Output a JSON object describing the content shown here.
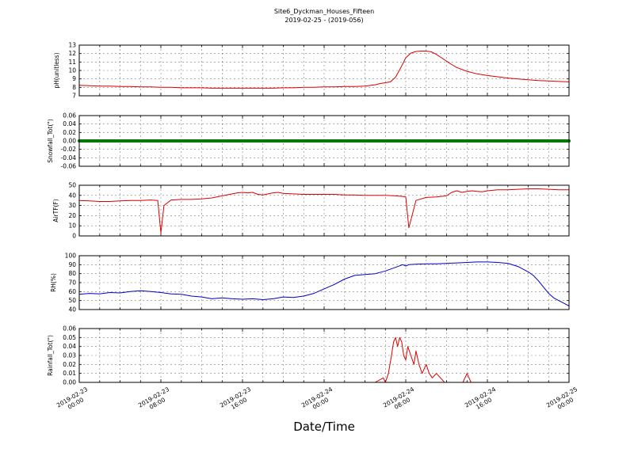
{
  "title": {
    "line1": "Site6_Dyckman_Houses_Fifteen",
    "line2": "2019-02-25 - (2019-056)"
  },
  "x_axis": {
    "label": "Date/Time",
    "unit": "hours since 2019-02-23 00:00",
    "range_hours": [
      0,
      48
    ],
    "grid_step_hours": 2,
    "tick_hours": [
      0,
      8,
      16,
      24,
      32,
      40,
      48
    ],
    "tick_labels": [
      [
        "2019-02-23",
        "00:00"
      ],
      [
        "2019-02-23",
        "08:00"
      ],
      [
        "2019-02-23",
        "16:00"
      ],
      [
        "2019-02-24",
        "00:00"
      ],
      [
        "2019-02-24",
        "08:00"
      ],
      [
        "2019-02-24",
        "16:00"
      ],
      [
        "2019-02-25",
        "00:00"
      ]
    ]
  },
  "chart_data": [
    {
      "id": "ph",
      "type": "line",
      "ylabel": "pH(unitless)",
      "color": "#dd0000",
      "line_width": 1,
      "ylim": [
        7,
        13
      ],
      "yticks": [
        7,
        8,
        9,
        10,
        11,
        12,
        13
      ],
      "ytick_labels": [
        "7",
        "8",
        "9",
        "10",
        "11",
        "12",
        "13"
      ],
      "x": [
        0,
        1,
        2,
        3,
        4,
        5,
        6,
        7,
        8,
        9,
        10,
        11,
        12,
        13,
        14,
        15,
        16,
        17,
        18,
        19,
        20,
        21,
        22,
        23,
        24,
        25,
        26,
        27,
        28,
        29,
        29.5,
        30,
        30.5,
        31,
        31.5,
        32,
        32.5,
        33,
        33.5,
        34,
        34.5,
        35,
        35.5,
        36,
        36.5,
        37,
        38,
        39,
        40,
        41,
        42,
        43,
        44,
        45,
        46,
        47,
        48
      ],
      "y": [
        8.25,
        8.2,
        8.15,
        8.15,
        8.1,
        8.1,
        8.05,
        8.05,
        8.0,
        8.0,
        7.95,
        7.95,
        7.95,
        7.9,
        7.9,
        7.9,
        7.9,
        7.9,
        7.9,
        7.9,
        7.95,
        7.95,
        8.0,
        8.0,
        8.05,
        8.05,
        8.1,
        8.1,
        8.15,
        8.3,
        8.45,
        8.55,
        8.65,
        9.2,
        10.3,
        11.5,
        12.05,
        12.25,
        12.3,
        12.3,
        12.2,
        11.9,
        11.5,
        11.1,
        10.7,
        10.35,
        9.9,
        9.6,
        9.4,
        9.25,
        9.1,
        9.0,
        8.9,
        8.8,
        8.75,
        8.7,
        8.65
      ]
    },
    {
      "id": "snowfall",
      "type": "line",
      "ylabel": "Snowfall_Tot(\")",
      "color": "#007700",
      "line_width": 4,
      "ylim": [
        -0.06,
        0.06
      ],
      "yticks": [
        -0.06,
        -0.04,
        -0.02,
        0,
        0.02,
        0.04,
        0.06
      ],
      "ytick_labels": [
        "-0.06",
        "-0.04",
        "-0.02",
        "0.00",
        "0.02",
        "0.04",
        "0.06"
      ],
      "x": [
        0,
        48
      ],
      "y": [
        0,
        0
      ]
    },
    {
      "id": "airtf",
      "type": "line",
      "ylabel": "AirTF(F)",
      "color": "#dd0000",
      "line_width": 1,
      "ylim": [
        0,
        50
      ],
      "yticks": [
        0,
        10,
        20,
        30,
        40,
        50
      ],
      "ytick_labels": [
        "0",
        "10",
        "20",
        "30",
        "40",
        "50"
      ],
      "x": [
        0,
        1,
        2,
        3,
        4,
        5,
        6,
        7,
        7.7,
        8,
        8.3,
        9,
        10,
        11,
        12,
        13,
        14,
        15,
        15.5,
        16,
        16.5,
        17,
        17.5,
        18,
        18.5,
        19,
        19.5,
        20,
        21,
        22,
        23,
        24,
        25,
        26,
        27,
        28,
        29,
        30,
        31,
        31.7,
        32,
        32.3,
        33,
        34,
        35,
        36,
        36.5,
        37,
        37.5,
        38,
        38.5,
        39,
        39.5,
        40,
        41,
        42,
        43,
        44,
        45,
        46,
        47,
        48
      ],
      "y": [
        35,
        34.5,
        34,
        34,
        34.5,
        35,
        35,
        35.5,
        35,
        3,
        30,
        35.5,
        36,
        36,
        36.5,
        37.5,
        39.5,
        41.5,
        42.5,
        43,
        42.5,
        43,
        41,
        40.5,
        41.5,
        42.5,
        43,
        42,
        41.5,
        41,
        41,
        41,
        41,
        40.5,
        40.5,
        40,
        40,
        40,
        39.5,
        39,
        38.5,
        8,
        35,
        38,
        38.5,
        39.5,
        43,
        44.5,
        43,
        44,
        44.5,
        44,
        43.5,
        44.5,
        45.5,
        45.5,
        46,
        46.5,
        46.5,
        46,
        45.5,
        45.5
      ]
    },
    {
      "id": "rh",
      "type": "line",
      "ylabel": "RH(%)",
      "color": "#0000cc",
      "line_width": 1,
      "ylim": [
        40,
        100
      ],
      "yticks": [
        40,
        50,
        60,
        70,
        80,
        90,
        100
      ],
      "ytick_labels": [
        "40",
        "50",
        "60",
        "70",
        "80",
        "90",
        "100"
      ],
      "x": [
        0,
        1,
        2,
        3,
        4,
        5,
        6,
        7,
        8,
        9,
        10,
        11,
        12,
        13,
        14,
        15,
        16,
        17,
        18,
        19,
        20,
        21,
        22,
        23,
        24,
        25,
        26,
        27,
        28,
        29,
        30,
        31,
        31.7,
        32,
        32.3,
        33,
        34,
        35,
        36,
        37,
        38,
        39,
        40,
        41,
        42,
        43,
        44,
        44.5,
        45,
        45.5,
        46,
        46.5,
        47,
        47.5,
        48
      ],
      "y": [
        57,
        58,
        57.5,
        59,
        58.5,
        60,
        61,
        60,
        59,
        57.5,
        57,
        55,
        54,
        52,
        53,
        52,
        51.5,
        52,
        51,
        52,
        54,
        53.5,
        55,
        58,
        63,
        68,
        74,
        78,
        79,
        80,
        83,
        87,
        90,
        88.5,
        90,
        90.5,
        91,
        91,
        91.5,
        92,
        92.5,
        93,
        93,
        92.5,
        91.5,
        88,
        82,
        78,
        72,
        65,
        58,
        53,
        50,
        47,
        44
      ]
    },
    {
      "id": "rainfall",
      "type": "line",
      "ylabel": "Rainfall_Tot(\")",
      "color": "#dd0000",
      "line_width": 1,
      "ylim": [
        0,
        0.06
      ],
      "yticks": [
        0,
        0.01,
        0.02,
        0.03,
        0.04,
        0.05,
        0.06
      ],
      "ytick_labels": [
        "0.00",
        "0.01",
        "0.02",
        "0.03",
        "0.04",
        "0.05",
        "0.06"
      ],
      "x": [
        0,
        29,
        29.8,
        30,
        30.3,
        30.6,
        30.8,
        31,
        31.2,
        31.4,
        31.6,
        31.8,
        32,
        32.2,
        32.5,
        32.8,
        33,
        33.3,
        33.6,
        34,
        34.3,
        34.6,
        35,
        35.4,
        35.8,
        36,
        37.6,
        37.8,
        38,
        38.2,
        38.4,
        48
      ],
      "y": [
        0,
        0,
        0.005,
        0,
        0.01,
        0.03,
        0.045,
        0.05,
        0.04,
        0.05,
        0.045,
        0.03,
        0.025,
        0.04,
        0.03,
        0.02,
        0.035,
        0.02,
        0.01,
        0.02,
        0.01,
        0.005,
        0.01,
        0.005,
        0,
        0,
        0,
        0.005,
        0.01,
        0.005,
        0,
        0
      ]
    }
  ]
}
